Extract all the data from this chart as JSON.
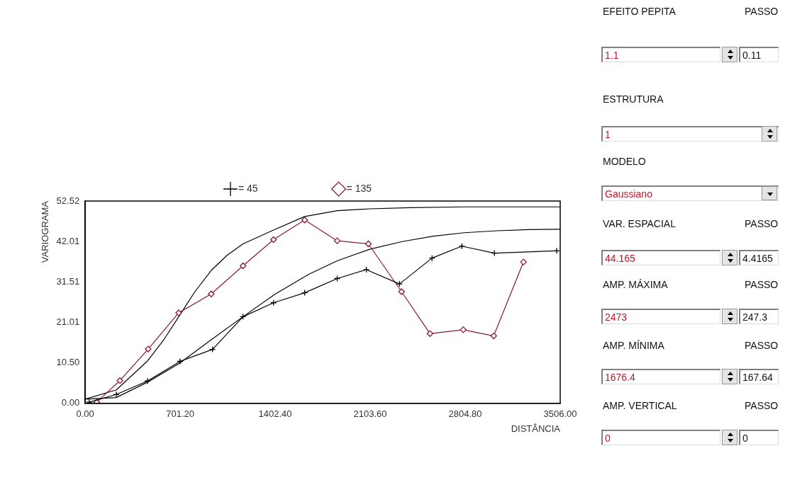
{
  "chart_data": [
    {
      "type": "line",
      "xlabel": "DISTÂNCIA",
      "ylabel": "VARIOGRAMA",
      "xlim": [
        0,
        3506
      ],
      "ylim": [
        0,
        52.52
      ],
      "xticks": [
        {
          "value": 0,
          "label": "0.00"
        },
        {
          "value": 701.2,
          "label": "701.20"
        },
        {
          "value": 1402.4,
          "label": "1402.40"
        },
        {
          "value": 2103.6,
          "label": "2103.60"
        },
        {
          "value": 2804.8,
          "label": "2804.80"
        },
        {
          "value": 3506,
          "label": "3506.00"
        }
      ],
      "yticks": [
        {
          "value": 0,
          "label": "0.00"
        },
        {
          "value": 10.5,
          "label": "10.50"
        },
        {
          "value": 21.01,
          "label": "21.01"
        },
        {
          "value": 31.51,
          "label": "31.51"
        },
        {
          "value": 42.01,
          "label": "42.01"
        },
        {
          "value": 52.52,
          "label": "52.52"
        }
      ],
      "grid": false,
      "legend": "top",
      "line_style": "solid",
      "series": [
        {
          "name": "= 45",
          "color": "#000000",
          "marker": "cross",
          "x": [
            30,
            230,
            460,
            700,
            940,
            1165,
            1390,
            1620,
            1860,
            2075,
            2320,
            2560,
            2780,
            3020,
            3480
          ],
          "values": [
            0.3,
            2.3,
            5.8,
            10.9,
            14,
            22.5,
            26.1,
            28.7,
            32.4,
            34.7,
            31,
            37.7,
            40.8,
            39,
            39.6
          ]
        },
        {
          "name": "= 135",
          "color": "#8b1a2a",
          "marker": "diamond",
          "x": [
            85,
            256,
            465,
            690,
            930,
            1165,
            1390,
            1620,
            1860,
            2090,
            2335,
            2545,
            2790,
            3015,
            3235
          ],
          "values": [
            0.3,
            5.9,
            14.1,
            23.5,
            28.4,
            35.7,
            42.5,
            47.6,
            42.2,
            41.4,
            29,
            18.1,
            19.1,
            17.5,
            36.7
          ]
        },
        {
          "color": "#000000",
          "marker": "none",
          "x": [
            0,
            230,
            460,
            580,
            700,
            810,
            930,
            1050,
            1165,
            1390,
            1620,
            1860,
            2100,
            2400,
            2800,
            3506
          ],
          "values": [
            1.1,
            3.5,
            11,
            16.5,
            23,
            29,
            34.5,
            38.5,
            41.4,
            45,
            48.5,
            50,
            50.5,
            50.8,
            51,
            51
          ]
        },
        {
          "color": "#000000",
          "marker": "none",
          "x": [
            0,
            230,
            460,
            700,
            930,
            1165,
            1400,
            1650,
            1860,
            2100,
            2340,
            2570,
            2800,
            3040,
            3270,
            3506
          ],
          "values": [
            1.1,
            1.5,
            5.5,
            10.5,
            16.5,
            22.5,
            28.3,
            33.5,
            37,
            40,
            42,
            43.4,
            44.3,
            44.8,
            45.1,
            45.2
          ]
        }
      ]
    },
    {
      "type": "other",
      "annotations": [
        "EFEITO PEPITA",
        "PASSO",
        "1.1",
        "0.11",
        "ESTRUTURA",
        "1",
        "MODELO",
        "Gaussiano",
        "VAR. ESPACIAL",
        "PASSO",
        "44.165",
        "4.4165",
        "AMP. MÁXIMA",
        "PASSO",
        "2473",
        "247.3",
        "AMP. MÍNIMA",
        "PASSO",
        "1676.4",
        "167.64",
        "AMP. VERTICAL",
        "PASSO",
        "0",
        "0"
      ]
    }
  ]
}
